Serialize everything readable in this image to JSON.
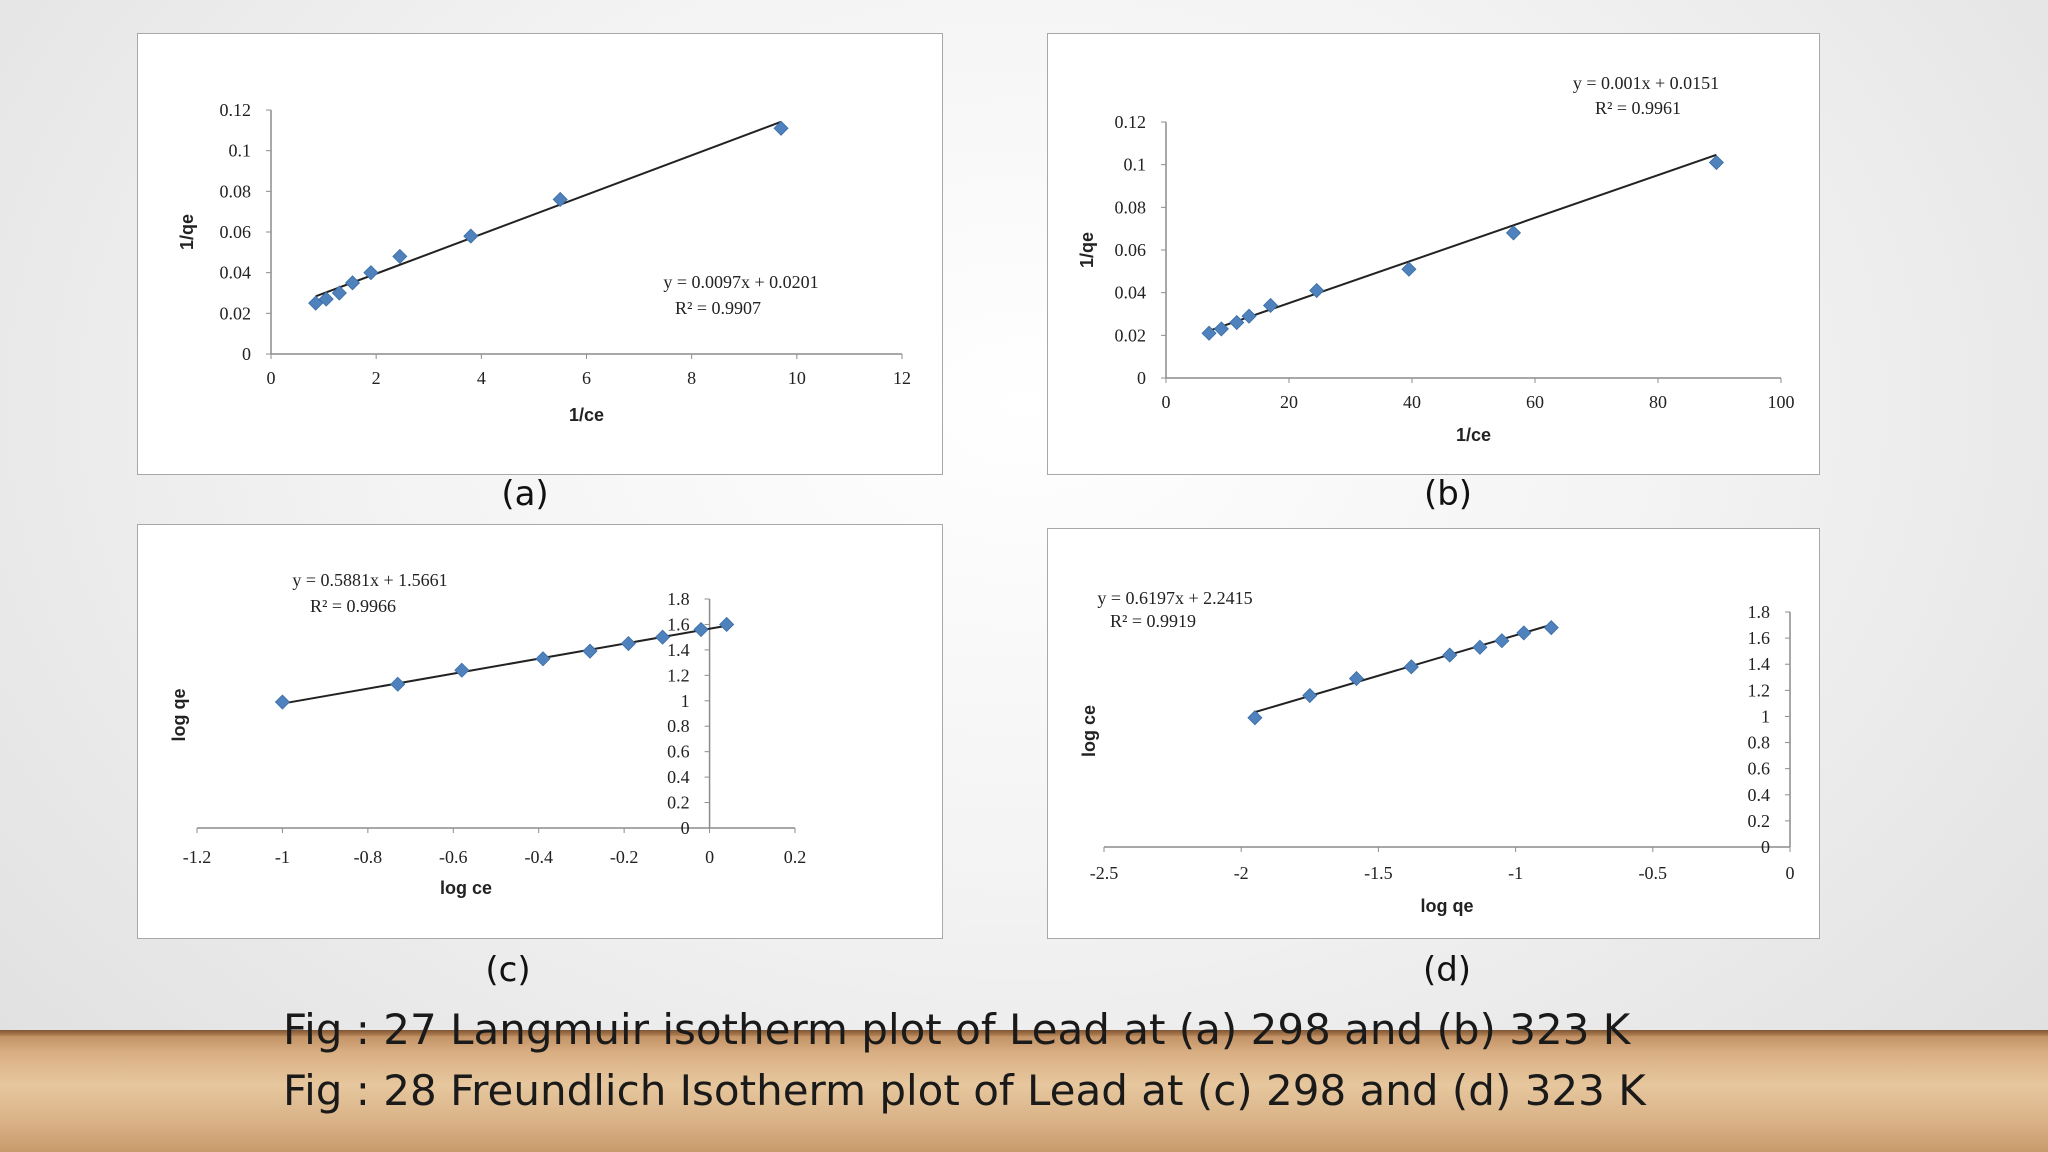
{
  "panels": [
    {
      "label": "(a)"
    },
    {
      "label": "(b)"
    },
    {
      "label": "(c)"
    },
    {
      "label": "(d)"
    }
  ],
  "captions": [
    "Fig : 27 Langmuir isotherm plot of Lead at (a) 298 and (b) 323 K",
    "Fig : 28 Freundlich Isotherm plot of Lead at (c) 298 and (d) 323 K"
  ],
  "colors": {
    "marker": "#4f81bd",
    "trendline": "#222222",
    "axis": "#8c8c8c"
  },
  "chart_data": [
    {
      "type": "scatter",
      "xlabel": "1/ce",
      "ylabel": "1/qe",
      "xlim": [
        0,
        12
      ],
      "ylim": [
        0,
        0.12
      ],
      "xticks": [
        "0",
        "2",
        "4",
        "6",
        "8",
        "10",
        "12"
      ],
      "yticks": [
        "0",
        "0.02",
        "0.04",
        "0.06",
        "0.08",
        "0.1",
        "0.12"
      ],
      "grid": false,
      "legend": "none",
      "x": [
        0.85,
        1.05,
        1.3,
        1.55,
        1.9,
        2.45,
        3.8,
        5.5,
        9.7
      ],
      "y": [
        0.025,
        0.027,
        0.03,
        0.035,
        0.04,
        0.048,
        0.058,
        0.076,
        0.111
      ],
      "trendline": {
        "slope": 0.0097,
        "intercept": 0.0201,
        "x_range": [
          0.85,
          9.7
        ]
      },
      "equation": "y = 0.0097x + 0.0201",
      "r2": "R² = 0.9907"
    },
    {
      "type": "scatter",
      "xlabel": "1/ce",
      "ylabel": "1/qe",
      "xlim": [
        0,
        100
      ],
      "ylim": [
        0,
        0.12
      ],
      "xticks": [
        "0",
        "20",
        "40",
        "60",
        "80",
        "100"
      ],
      "yticks": [
        "0",
        "0.02",
        "0.04",
        "0.06",
        "0.08",
        "0.1",
        "0.12"
      ],
      "grid": false,
      "legend": "none",
      "x": [
        7,
        9,
        11.5,
        13.5,
        17,
        24.5,
        39.5,
        56.5,
        89.5
      ],
      "y": [
        0.021,
        0.023,
        0.026,
        0.029,
        0.034,
        0.041,
        0.051,
        0.068,
        0.101
      ],
      "trendline": {
        "slope": 0.001,
        "intercept": 0.0151,
        "x_range": [
          7,
          89.5
        ]
      },
      "equation": "y = 0.001x + 0.0151",
      "r2": "R² = 0.9961"
    },
    {
      "type": "scatter",
      "xlabel": "log ce",
      "ylabel": "log qe",
      "xlim": [
        -1.2,
        0.2
      ],
      "ylim": [
        0,
        1.8
      ],
      "xticks": [
        "-1.2",
        "-1",
        "-0.8",
        "-0.6",
        "-0.4",
        "-0.2",
        "0",
        "0.2"
      ],
      "yticks": [
        "0",
        "0.2",
        "0.4",
        "0.6",
        "0.8",
        "1",
        "1.2",
        "1.4",
        "1.6",
        "1.8"
      ],
      "grid": false,
      "legend": "none",
      "x": [
        -1.0,
        -0.73,
        -0.58,
        -0.39,
        -0.28,
        -0.19,
        -0.11,
        -0.02,
        0.04
      ],
      "y": [
        0.99,
        1.13,
        1.24,
        1.33,
        1.39,
        1.45,
        1.5,
        1.56,
        1.6
      ],
      "trendline": {
        "slope": 0.5881,
        "intercept": 1.5661,
        "x_range": [
          -1.0,
          0.04
        ]
      },
      "equation": "y = 0.5881x + 1.5661",
      "r2": "R² = 0.9966"
    },
    {
      "type": "scatter",
      "xlabel": "log qe",
      "ylabel": "log ce",
      "xlim": [
        -2.5,
        0
      ],
      "ylim": [
        0,
        1.8
      ],
      "xticks": [
        "-2.5",
        "-2",
        "-1.5",
        "-1",
        "-0.5",
        "0"
      ],
      "yticks": [
        "0",
        "0.2",
        "0.4",
        "0.6",
        "0.8",
        "1",
        "1.2",
        "1.4",
        "1.6",
        "1.8"
      ],
      "grid": false,
      "legend": "none",
      "x": [
        -1.95,
        -1.75,
        -1.58,
        -1.38,
        -1.24,
        -1.13,
        -1.05,
        -0.97,
        -0.87
      ],
      "y": [
        0.99,
        1.16,
        1.29,
        1.38,
        1.47,
        1.53,
        1.58,
        1.64,
        1.68
      ],
      "trendline": {
        "slope": 0.6197,
        "intercept": 2.2415,
        "x_range": [
          -1.95,
          -0.87
        ]
      },
      "equation": "y = 0.6197x + 2.2415",
      "r2": "R² = 0.9919"
    }
  ]
}
